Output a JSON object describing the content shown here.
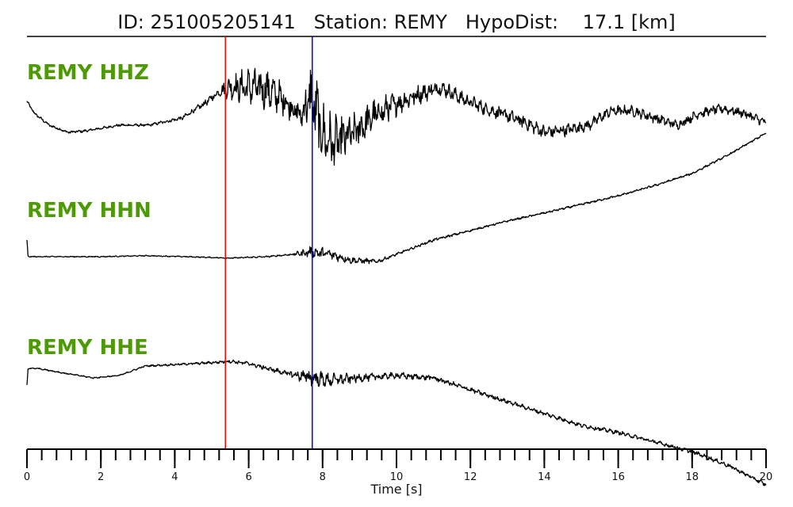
{
  "header": {
    "id_label": "ID:",
    "id_value": "251005205141",
    "station_label": "Station:",
    "station_value": "REMY",
    "hypodist_label": "HypoDist:",
    "hypodist_value": "17.1",
    "hypodist_unit": "[km]"
  },
  "chart_data": {
    "type": "line",
    "xlabel": "Time [s]",
    "xlim": [
      0,
      20
    ],
    "x_major_ticks": [
      0,
      2,
      4,
      6,
      8,
      10,
      12,
      14,
      16,
      18,
      20
    ],
    "x_minor_step": 0.4,
    "grid": false,
    "series": [
      {
        "name": "REMY HHZ",
        "t": [
          0,
          0.2,
          0.6,
          1.1,
          1.6,
          2.5,
          3.3,
          4.2,
          4.8,
          5.2,
          5.5,
          6.0,
          6.5,
          7.0,
          7.4,
          7.7,
          8.0,
          8.3,
          8.8,
          9.4,
          10.0,
          10.6,
          11.2,
          11.8,
          12.4,
          13.0,
          13.5,
          14.0,
          14.6,
          15.2,
          15.8,
          16.4,
          17.0,
          17.6,
          18.2,
          18.8,
          19.4,
          20.0
        ],
        "v": [
          0.2,
          -0.05,
          -0.3,
          -0.45,
          -0.42,
          -0.3,
          -0.3,
          -0.15,
          0.15,
          0.4,
          0.5,
          0.5,
          0.45,
          0.2,
          -0.1,
          0.3,
          -0.5,
          -0.7,
          -0.5,
          -0.1,
          0.15,
          0.35,
          0.5,
          0.25,
          0.05,
          -0.1,
          -0.25,
          -0.45,
          -0.4,
          -0.3,
          0.0,
          0.0,
          -0.15,
          -0.3,
          -0.05,
          0.05,
          -0.05,
          -0.25
        ],
        "noise": [
          0.02,
          0.02,
          0.02,
          0.02,
          0.02,
          0.02,
          0.02,
          0.03,
          0.05,
          0.06,
          0.18,
          0.28,
          0.3,
          0.22,
          0.18,
          0.55,
          0.5,
          0.4,
          0.3,
          0.25,
          0.18,
          0.14,
          0.12,
          0.1,
          0.1,
          0.1,
          0.1,
          0.1,
          0.09,
          0.09,
          0.08,
          0.08,
          0.08,
          0.07,
          0.07,
          0.07,
          0.07,
          0.07
        ]
      },
      {
        "name": "REMY HHN",
        "t": [
          0,
          0.03,
          0.2,
          1.0,
          2.0,
          3.2,
          4.3,
          5.5,
          6.5,
          7.2,
          7.7,
          8.2,
          8.8,
          9.5,
          10.0,
          11.0,
          12.0,
          13.0,
          14.0,
          15.0,
          16.0,
          17.0,
          18.0,
          19.0,
          20.0
        ],
        "v": [
          0.35,
          0.0,
          0.0,
          0.0,
          0.0,
          0.02,
          0.0,
          -0.03,
          0.0,
          0.05,
          0.1,
          0.05,
          -0.08,
          -0.1,
          0.05,
          0.35,
          0.55,
          0.75,
          0.92,
          1.1,
          1.28,
          1.5,
          1.75,
          2.15,
          2.6
        ],
        "noise": [
          0.0,
          0.005,
          0.008,
          0.008,
          0.008,
          0.008,
          0.008,
          0.01,
          0.012,
          0.015,
          0.09,
          0.08,
          0.05,
          0.03,
          0.02,
          0.02,
          0.015,
          0.015,
          0.015,
          0.015,
          0.015,
          0.015,
          0.015,
          0.015,
          0.015
        ]
      },
      {
        "name": "REMY HHE",
        "t": [
          0,
          0.03,
          0.3,
          1.0,
          1.8,
          2.5,
          3.2,
          4.0,
          5.0,
          5.5,
          6.0,
          7.0,
          7.7,
          8.2,
          9.0,
          10.0,
          11.0,
          12.0,
          13.0,
          14.0,
          15.0,
          16.0,
          17.0,
          18.0,
          19.0,
          20.0
        ],
        "v": [
          -0.35,
          0.0,
          0.0,
          -0.1,
          -0.2,
          -0.15,
          0.05,
          0.08,
          0.12,
          0.15,
          0.1,
          -0.1,
          -0.2,
          -0.25,
          -0.2,
          -0.15,
          -0.2,
          -0.45,
          -0.7,
          -0.95,
          -1.2,
          -1.35,
          -1.55,
          -1.75,
          -2.05,
          -2.45
        ],
        "noise": [
          0.0,
          0.01,
          0.01,
          0.01,
          0.01,
          0.01,
          0.012,
          0.015,
          0.02,
          0.025,
          0.03,
          0.04,
          0.12,
          0.1,
          0.06,
          0.05,
          0.04,
          0.035,
          0.03,
          0.03,
          0.03,
          0.03,
          0.03,
          0.03,
          0.03,
          0.03
        ]
      }
    ],
    "picks": [
      {
        "phase": "P",
        "t": 5.37,
        "color": "#ff0000"
      },
      {
        "phase": "S",
        "t": 7.72,
        "color": "#0000ff"
      }
    ],
    "trace_color": "#000000",
    "label_color": "#4e9a06"
  }
}
